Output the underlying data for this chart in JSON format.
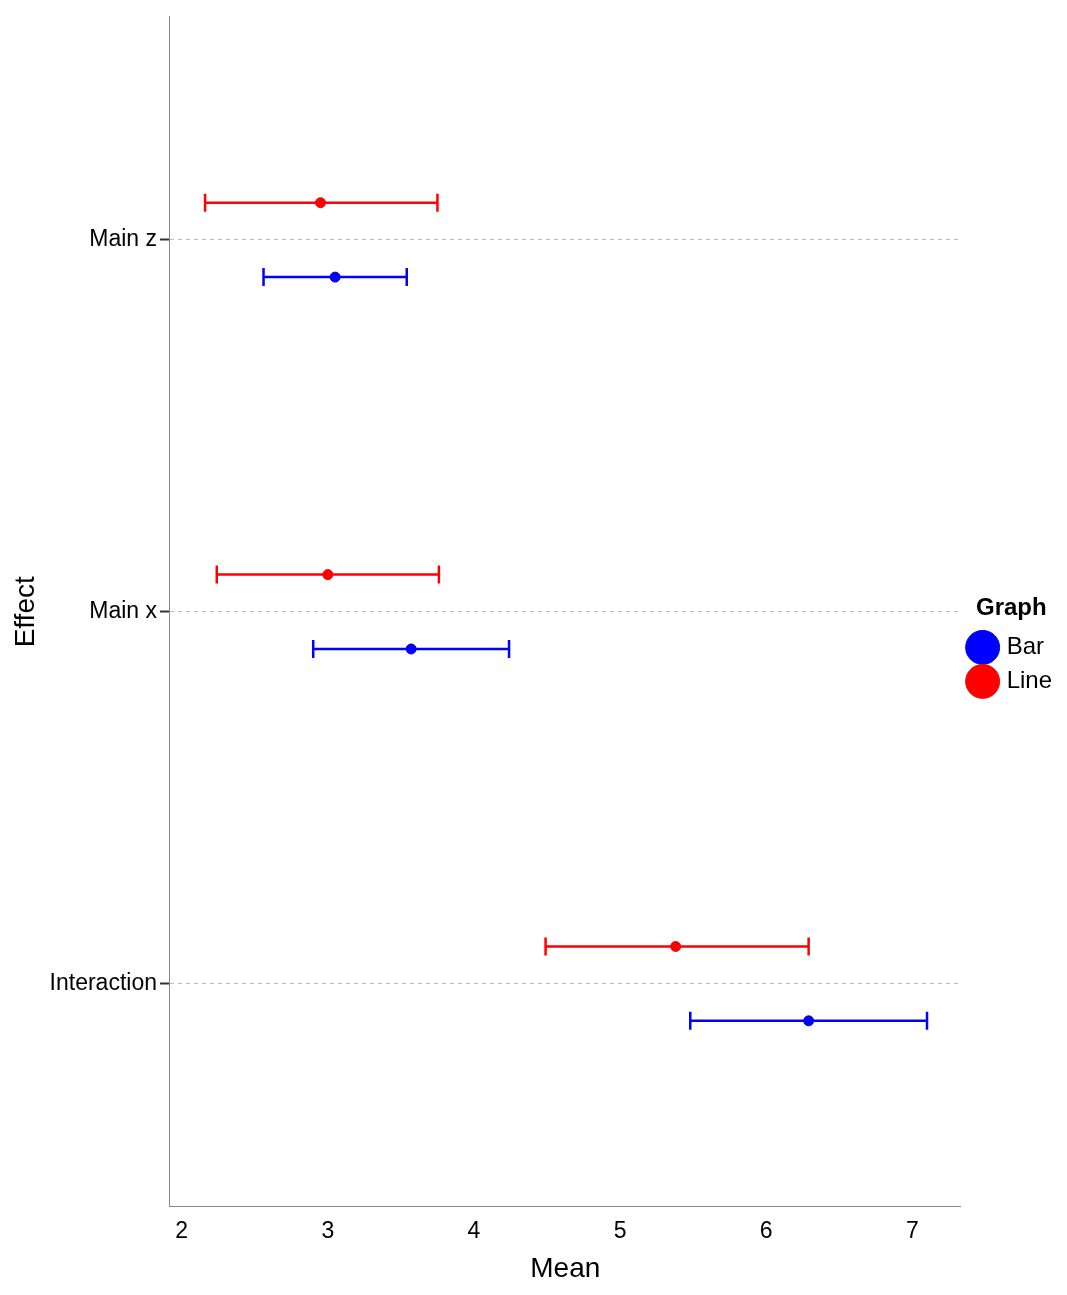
{
  "chart_data": {
    "type": "scatter",
    "orientation": "horizontal",
    "xlabel": "Mean",
    "ylabel": "Effect",
    "legend_title": "Graph",
    "categories": [
      "Main z",
      "Main x",
      "Interaction"
    ],
    "series": [
      {
        "name": "Bar",
        "color": "#0000ff",
        "values": [
          3.05,
          3.57,
          6.29
        ],
        "errors": [
          [
            2.56,
            3.54
          ],
          [
            2.9,
            4.24
          ],
          [
            5.48,
            7.1
          ]
        ]
      },
      {
        "name": "Line",
        "color": "#ff0000",
        "values": [
          2.95,
          3.0,
          5.38
        ],
        "errors": [
          [
            2.16,
            3.75
          ],
          [
            2.24,
            3.76
          ],
          [
            4.49,
            6.29
          ]
        ]
      }
    ],
    "xlim": [
      1.92,
      7.33
    ],
    "xticks": [
      2,
      3,
      4,
      5,
      6,
      7
    ],
    "grid": "y",
    "legend": "right",
    "marker": "circle"
  }
}
